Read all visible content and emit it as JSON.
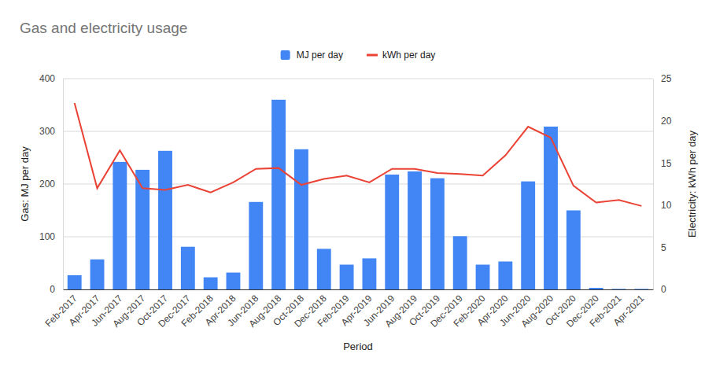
{
  "chart_data": {
    "type": "bar",
    "title": "Gas and electricity usage",
    "x_label": "Period",
    "y_label": "Gas: MJ per day",
    "y2_label": "Electricity: kWh per day",
    "categories": [
      "Feb-2017",
      "Apr-2017",
      "Jun-2017",
      "Aug-2017",
      "Oct-2017",
      "Dec-2017",
      "Feb-2018",
      "Apr-2018",
      "Jun-2018",
      "Aug-2018",
      "Oct-2018",
      "Dec-2018",
      "Feb-2019",
      "Apr-2019",
      "Jun-2019",
      "Aug-2019",
      "Oct-2019",
      "Dec-2019",
      "Feb-2020",
      "Apr-2020",
      "Jun-2020",
      "Aug-2020",
      "Oct-2020",
      "Dec-2020",
      "Feb-2021",
      "Apr-2021"
    ],
    "series": [
      {
        "name": "MJ per day",
        "type": "bar",
        "color": "#4285f4",
        "values": [
          27,
          57,
          242,
          227,
          263,
          81,
          23,
          32,
          166,
          360,
          266,
          77,
          47,
          59,
          218,
          224,
          211,
          101,
          47,
          53,
          205,
          309,
          150,
          3,
          1,
          1
        ]
      },
      {
        "name": "kWh per day",
        "type": "line",
        "axis": "y2",
        "color": "#ea4335",
        "values": [
          22.1,
          12.0,
          16.5,
          12.0,
          11.8,
          12.4,
          11.5,
          12.7,
          14.3,
          14.4,
          12.4,
          13.1,
          13.5,
          12.7,
          14.3,
          14.3,
          13.8,
          13.7,
          13.5,
          15.9,
          19.3,
          18.0,
          12.3,
          10.3,
          10.6,
          9.9
        ]
      }
    ],
    "ylim": [
      0,
      400
    ],
    "yticks": [
      0,
      100,
      200,
      300,
      400
    ],
    "y2lim": [
      0,
      25
    ],
    "y2ticks": [
      0,
      5,
      10,
      15,
      20,
      25
    ],
    "grid": true,
    "legend": "top"
  }
}
